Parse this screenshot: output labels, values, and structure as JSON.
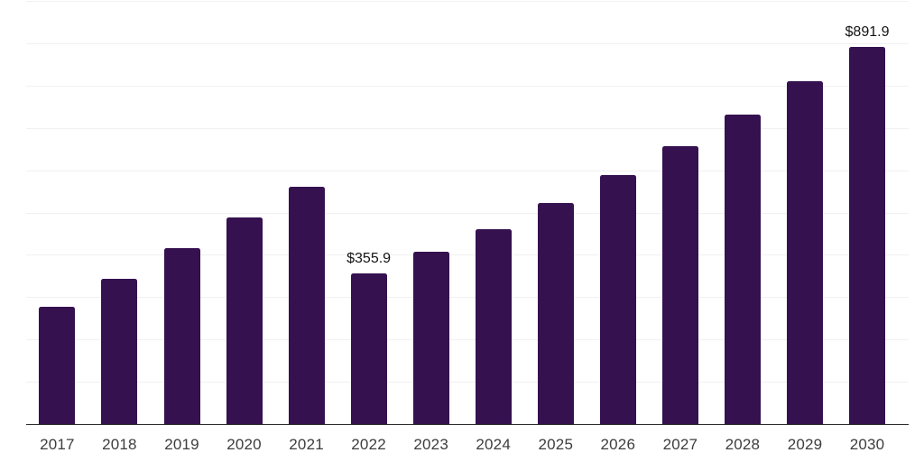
{
  "chart_data": {
    "type": "bar",
    "title": "",
    "categories": [
      "2017",
      "2018",
      "2019",
      "2020",
      "2021",
      "2022",
      "2023",
      "2024",
      "2025",
      "2026",
      "2027",
      "2028",
      "2029",
      "2030"
    ],
    "values": [
      277,
      344,
      416,
      489,
      561,
      355.9,
      407,
      461,
      523,
      588,
      656,
      731,
      810,
      891.9
    ],
    "value_labels": [
      null,
      null,
      null,
      null,
      null,
      "$355.9",
      null,
      null,
      null,
      null,
      null,
      null,
      null,
      "$891.9"
    ],
    "xlabel": "",
    "ylabel": "",
    "ylim": [
      0,
      1000
    ],
    "grid_step": 100,
    "grid": true,
    "legend": false,
    "y_axis_labels_shown": false,
    "colors": {
      "bar": "#351150",
      "grid": "#F1F1F1",
      "axis": "#2B2B2B",
      "tick_label": "#3D3D3D",
      "value_label": "#141414",
      "background": "#FFFFFF"
    }
  }
}
